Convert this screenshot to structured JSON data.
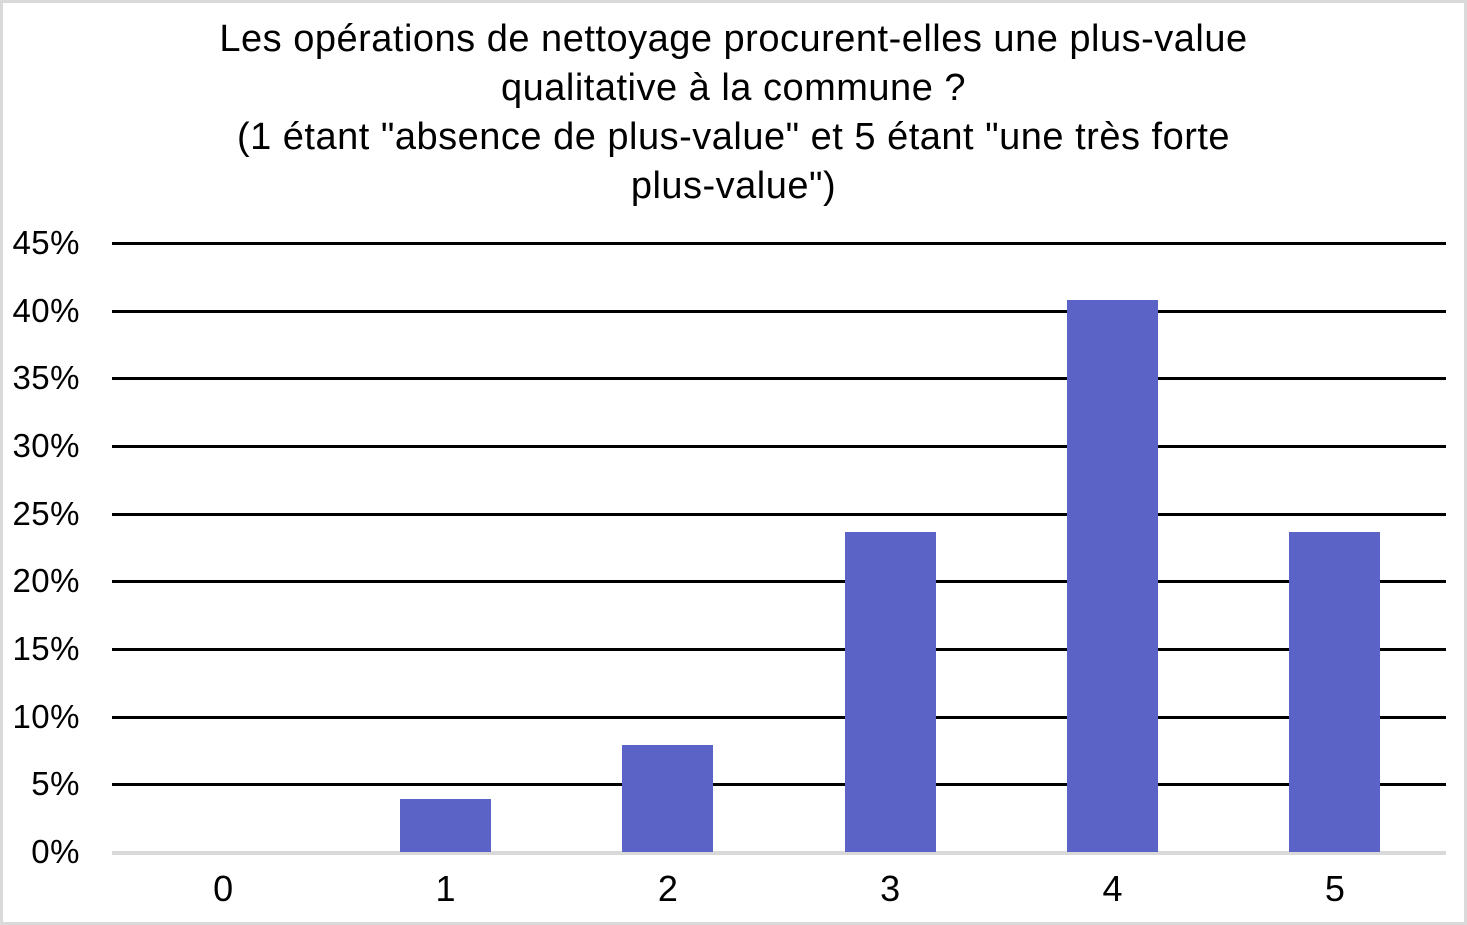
{
  "title": {
    "lines": [
      "Les opérations de nettoyage procurent-elles une plus-value",
      "qualitative à la commune ?",
      "(1 étant \"absence de plus-value\" et 5 étant \"une très forte",
      "plus-value\")"
    ]
  },
  "chart_data": {
    "type": "bar",
    "title": "Les opérations de nettoyage procurent-elles une plus-value qualitative à la commune ? (1 étant \"absence de plus-value\" et 5 étant \"une très forte plus-value\")",
    "categories": [
      "0",
      "1",
      "2",
      "3",
      "4",
      "5"
    ],
    "values": [
      0,
      3.95,
      7.89,
      23.68,
      40.79,
      23.68
    ],
    "unit": "%",
    "xlabel": "",
    "ylabel": "",
    "ylim": [
      0,
      45
    ],
    "ytick_step": 5,
    "ytick_labels": [
      "45%",
      "40%",
      "35%",
      "30%",
      "25%",
      "20%",
      "15%",
      "10%",
      "5%",
      "0%"
    ],
    "grid": true,
    "legend_position": "none",
    "colors": {
      "bar": "#5b63c7",
      "gridline": "#000000",
      "baseline": "#d9d9d9",
      "text": "#000000",
      "background": "#ffffff",
      "page_border": "#dadada"
    }
  }
}
